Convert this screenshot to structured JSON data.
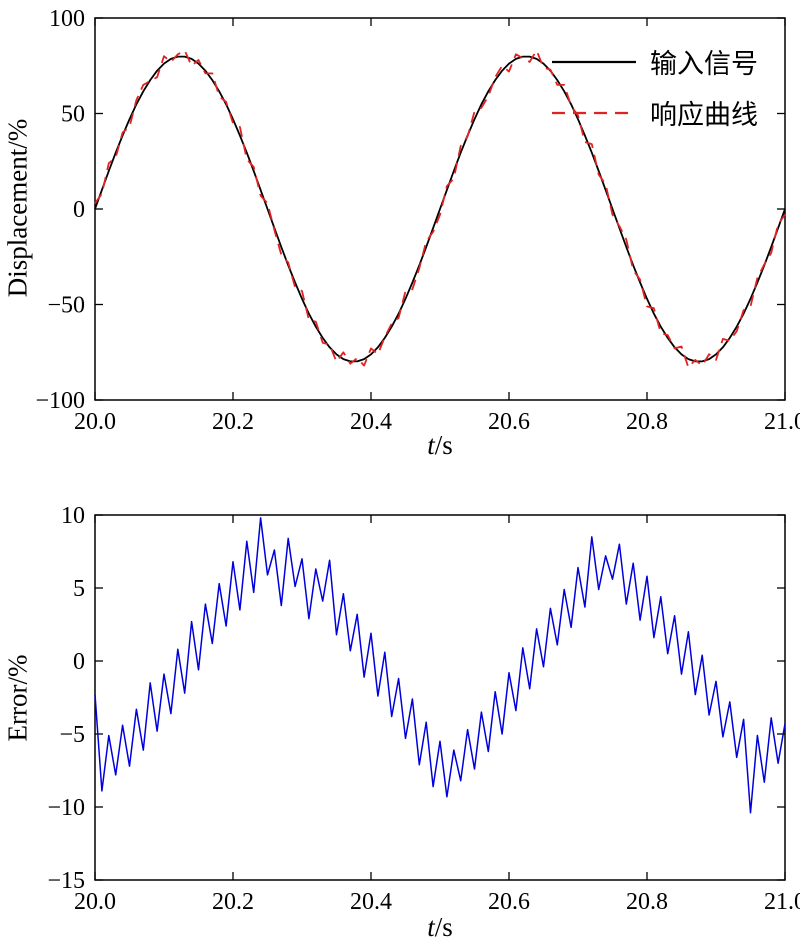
{
  "page": {
    "background": "#ffffff",
    "axis_color": "#000000"
  },
  "chart_data": [
    {
      "type": "line",
      "title": "",
      "xlabel": "t/s",
      "xlabel_var": "t",
      "xlabel_unit": "/s",
      "ylabel": "Displacement/%",
      "xlim": [
        20.0,
        21.0
      ],
      "ylim": [
        -100,
        100
      ],
      "xtick_values": [
        20.0,
        20.2,
        20.4,
        20.6,
        20.8,
        21.0
      ],
      "xtick_labels": [
        "20.0",
        "20.2",
        "20.4",
        "20.6",
        "20.8",
        "21.0"
      ],
      "ytick_values": [
        -100,
        -50,
        0,
        50,
        100
      ],
      "ytick_labels": [
        "−100",
        "−50",
        "0",
        "50",
        "100"
      ],
      "grid": false,
      "legend_position": "top-right",
      "series": [
        {
          "name": "输入信号",
          "color": "#000000",
          "line_style": "solid",
          "line_width": 1.8,
          "x0": 20.0,
          "dx": 0.01,
          "y": [
            0,
            10,
            19.9,
            29.5,
            38.5,
            47,
            54.8,
            61.6,
            67.5,
            72.4,
            76.1,
            78.6,
            79.8,
            79.8,
            78.6,
            76.1,
            72.4,
            67.5,
            61.6,
            54.8,
            47,
            38.5,
            29.5,
            19.9,
            10,
            0,
            -10,
            -19.9,
            -29.5,
            -38.5,
            -47,
            -54.8,
            -61.6,
            -67.5,
            -72.4,
            -76.1,
            -78.6,
            -79.8,
            -79.8,
            -78.6,
            -76.1,
            -72.4,
            -67.5,
            -61.6,
            -54.8,
            -47,
            -38.5,
            -29.5,
            -19.9,
            -10,
            0,
            10,
            19.9,
            29.5,
            38.5,
            47,
            54.8,
            61.6,
            67.5,
            72.4,
            76.1,
            78.6,
            79.8,
            79.8,
            78.6,
            76.1,
            72.4,
            67.5,
            61.6,
            54.8,
            47,
            38.5,
            29.5,
            19.9,
            10,
            0,
            -10,
            -19.9,
            -29.5,
            -38.5,
            -47,
            -54.8,
            -61.6,
            -67.5,
            -72.4,
            -76.1,
            -78.6,
            -79.8,
            -79.8,
            -78.6,
            -76.1,
            -72.4,
            -67.5,
            -61.6,
            -54.8,
            -47,
            -38.5,
            -29.5,
            -19.9,
            -10,
            0
          ]
        },
        {
          "name": "响应曲线",
          "color": "#e02222",
          "line_style": "dashed",
          "line_width": 1.8,
          "x0": 20.0,
          "dx": 0.01,
          "y": [
            3,
            8,
            24,
            27,
            40,
            43,
            57,
            65,
            67,
            69,
            80,
            77,
            81,
            83,
            75,
            78,
            71,
            71,
            59,
            56,
            45,
            43,
            26,
            22,
            7,
            3,
            -11,
            -24,
            -28,
            -41,
            -43,
            -58,
            -59,
            -70,
            -71,
            -80,
            -75,
            -81,
            -78,
            -82,
            -73,
            -76,
            -67,
            -60,
            -57,
            -43,
            -42,
            -31,
            -17,
            -12,
            -3,
            12,
            16,
            33,
            38,
            51,
            53,
            59,
            69,
            75,
            72,
            81,
            79,
            77,
            83,
            74,
            73,
            65,
            65,
            54,
            49,
            35,
            34,
            18,
            13,
            -3,
            -9,
            -16,
            -32,
            -37,
            -51,
            -52,
            -65,
            -66,
            -73,
            -72,
            -83,
            -79,
            -82,
            -76,
            -79,
            -68,
            -69,
            -64,
            -53,
            -51,
            -36,
            -29,
            -23,
            -8,
            -3
          ]
        }
      ]
    },
    {
      "type": "line",
      "title": "",
      "xlabel": "t/s",
      "xlabel_var": "t",
      "xlabel_unit": "/s",
      "ylabel": "Error/%",
      "xlim": [
        20.0,
        21.0
      ],
      "ylim": [
        -15,
        10
      ],
      "xtick_values": [
        20.0,
        20.2,
        20.4,
        20.6,
        20.8,
        21.0
      ],
      "xtick_labels": [
        "20.0",
        "20.2",
        "20.4",
        "20.6",
        "20.8",
        "21.0"
      ],
      "ytick_values": [
        -15,
        -10,
        -5,
        0,
        5,
        10
      ],
      "ytick_labels": [
        "−15",
        "−10",
        "−5",
        "0",
        "5",
        "10"
      ],
      "grid": false,
      "legend_position": "none",
      "series": [
        {
          "color": "#0000dd",
          "line_style": "solid",
          "line_width": 1.5,
          "x0": 20.0,
          "dx": 0.01,
          "y": [
            -2.3,
            -8.9,
            -5.1,
            -7.8,
            -4.4,
            -7.2,
            -3.3,
            -6.1,
            -1.5,
            -4.8,
            -0.9,
            -3.6,
            0.8,
            -2.2,
            2.7,
            -0.6,
            3.9,
            1.2,
            5.3,
            2.4,
            6.8,
            3.5,
            8.2,
            4.7,
            9.8,
            5.9,
            7.6,
            3.8,
            8.4,
            5.1,
            7.0,
            2.9,
            6.3,
            4.1,
            6.9,
            1.8,
            4.6,
            0.7,
            3.2,
            -1.1,
            1.9,
            -2.4,
            0.6,
            -3.8,
            -1.2,
            -5.3,
            -2.6,
            -7.1,
            -4.2,
            -8.6,
            -5.5,
            -9.3,
            -6.1,
            -8.2,
            -4.7,
            -7.4,
            -3.5,
            -6.2,
            -2.1,
            -5.0,
            -0.8,
            -3.4,
            0.9,
            -1.9,
            2.2,
            -0.4,
            3.6,
            1.1,
            4.9,
            2.3,
            6.4,
            3.7,
            8.5,
            4.9,
            7.2,
            5.6,
            8.0,
            3.9,
            6.7,
            2.8,
            5.8,
            1.6,
            4.4,
            0.5,
            3.1,
            -0.9,
            2.0,
            -2.3,
            0.4,
            -3.7,
            -1.4,
            -5.2,
            -2.8,
            -6.6,
            -4.0,
            -10.4,
            -5.1,
            -8.3,
            -3.9,
            -7.0,
            -4.3
          ]
        }
      ]
    }
  ]
}
